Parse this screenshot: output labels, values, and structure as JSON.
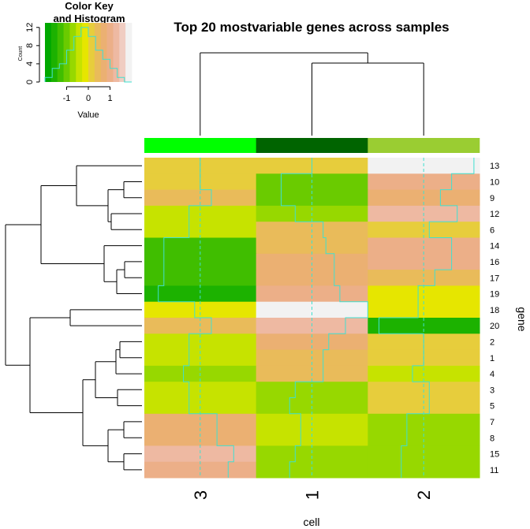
{
  "chart_data": {
    "type": "heatmap",
    "title": "Top 20 mostvariable genes across samples",
    "xlabel": "cell",
    "ylabel": "gene",
    "columns": [
      "3",
      "1",
      "2"
    ],
    "column_side_colors": [
      "#00ff00",
      "#006400",
      "#9acd32"
    ],
    "rows": [
      "13",
      "10",
      "9",
      "12",
      "6",
      "14",
      "16",
      "17",
      "19",
      "18",
      "20",
      "2",
      "1",
      "4",
      "3",
      "5",
      "7",
      "8",
      "15",
      "11"
    ],
    "values": [
      [
        0.0,
        0.0,
        1.8
      ],
      [
        0.0,
        -1.1,
        1.0
      ],
      [
        0.4,
        -1.1,
        0.6
      ],
      [
        -0.4,
        -0.6,
        1.2
      ],
      [
        -0.4,
        0.4,
        0.2
      ],
      [
        -1.3,
        0.5,
        1.0
      ],
      [
        -1.3,
        0.8,
        1.0
      ],
      [
        -1.3,
        0.8,
        0.4
      ],
      [
        -1.5,
        1.0,
        -0.2
      ],
      [
        -0.2,
        2.0,
        -0.2
      ],
      [
        0.4,
        1.2,
        -1.6
      ],
      [
        -0.4,
        0.6,
        0.0
      ],
      [
        -0.4,
        0.4,
        0.0
      ],
      [
        -0.6,
        0.4,
        -0.4
      ],
      [
        -0.4,
        -0.6,
        0.2
      ],
      [
        -0.4,
        -0.8,
        0.2
      ],
      [
        0.6,
        -0.4,
        -0.6
      ],
      [
        0.6,
        -0.4,
        -0.6
      ],
      [
        1.2,
        -0.6,
        -0.8
      ],
      [
        1.0,
        -0.8,
        -0.8
      ]
    ],
    "color_key": {
      "title_line1": "Color Key",
      "title_line2": "and Histogram",
      "xlabel": "Value",
      "ylabel": "Count",
      "x_ticks": [
        "-1",
        "0",
        "1"
      ],
      "y_ticks": [
        "0",
        "4",
        "8",
        "12"
      ],
      "range": [
        -2,
        2
      ],
      "ylim": [
        0,
        13
      ],
      "colors": [
        "#00a800",
        "#1cb200",
        "#40be00",
        "#6acb00",
        "#97d800",
        "#c6e300",
        "#e6e600",
        "#e7cd3c",
        "#e9bb5a",
        "#ebb072",
        "#ecaf88",
        "#eeb9a2",
        "#f0cdc2",
        "#f2f2f2"
      ],
      "hist_counts": [
        1,
        3,
        4,
        7,
        10,
        12,
        10,
        7,
        5,
        3,
        1,
        0
      ]
    },
    "trace_color": "#40e0d0"
  }
}
